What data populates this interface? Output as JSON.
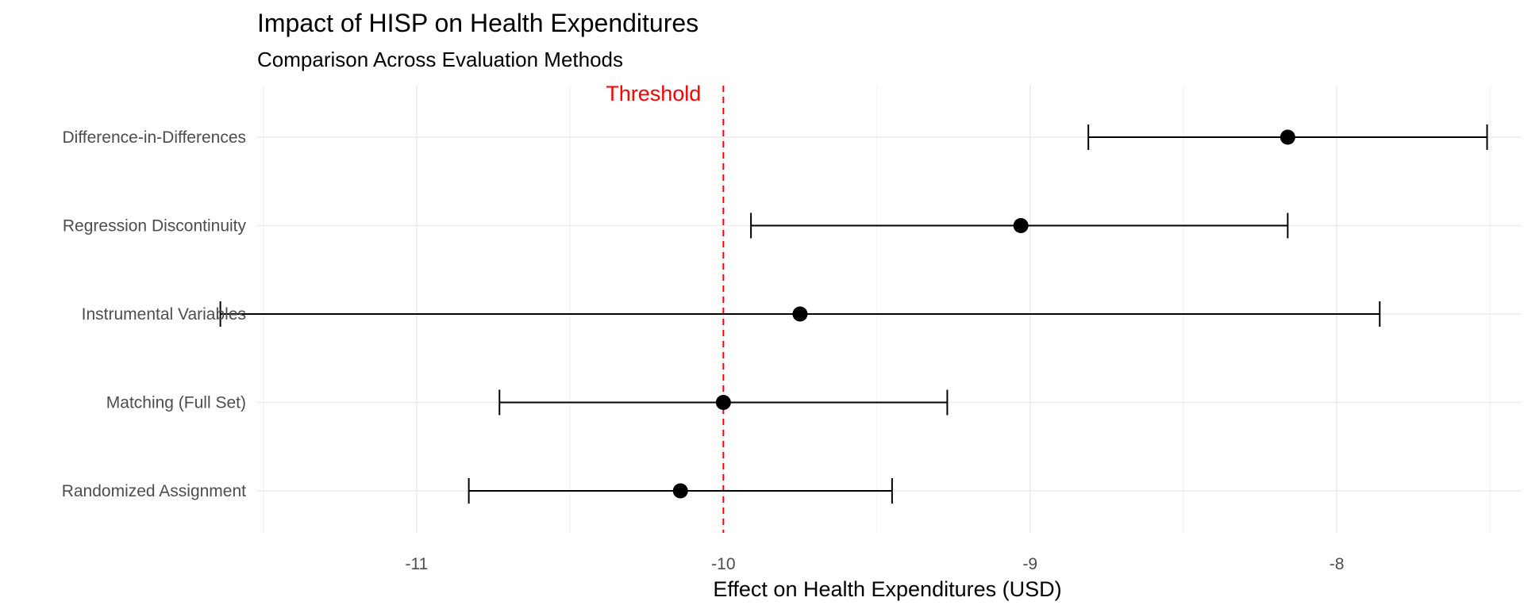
{
  "chart_data": {
    "type": "errorbar",
    "title": "Impact of HISP on Health Expenditures",
    "subtitle": "Comparison Across Evaluation Methods",
    "xlabel": "Effect on Health Expenditures (USD)",
    "ylabel": "",
    "xlim": [
      -11.52,
      -7.4
    ],
    "x_ticks": [
      -11,
      -10,
      -9,
      -8
    ],
    "x_tick_labels": [
      "-11",
      "-10",
      "-9",
      "-8"
    ],
    "x_minor_ticks": [
      -11.5,
      -10.5,
      -9.5,
      -8.5,
      -7.5
    ],
    "grid": true,
    "legend": "none",
    "categories": [
      "Difference-in-Differences",
      "Regression Discontinuity",
      "Instrumental Variables",
      "Matching (Full Set)",
      "Randomized Assignment"
    ],
    "estimates": [
      {
        "method": "Difference-in-Differences",
        "estimate": -8.16,
        "ci_low": -8.81,
        "ci_high": -7.51
      },
      {
        "method": "Regression Discontinuity",
        "estimate": -9.03,
        "ci_low": -9.91,
        "ci_high": -8.16
      },
      {
        "method": "Instrumental Variables",
        "estimate": -9.75,
        "ci_low": -11.64,
        "ci_high": -7.86
      },
      {
        "method": "Matching (Full Set)",
        "estimate": -10.0,
        "ci_low": -10.73,
        "ci_high": -9.27
      },
      {
        "method": "Randomized Assignment",
        "estimate": -10.14,
        "ci_low": -10.83,
        "ci_high": -9.45
      }
    ],
    "reference_line": {
      "x": -10,
      "label": "Threshold",
      "color": "#ff0000",
      "style": "dashed"
    },
    "point_color": "#000000"
  }
}
